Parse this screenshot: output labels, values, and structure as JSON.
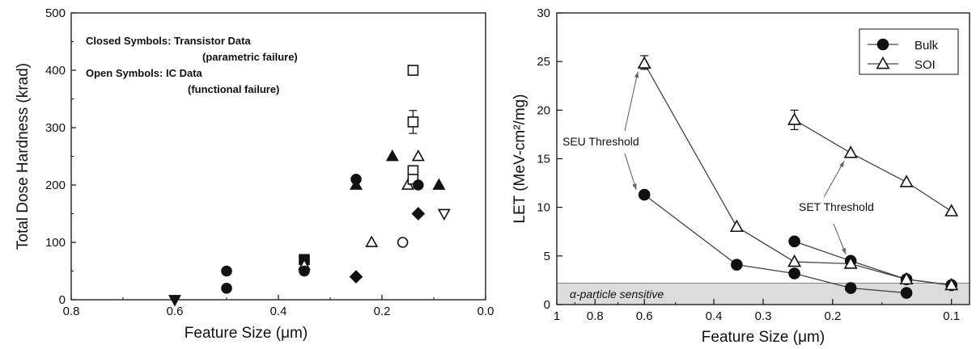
{
  "chart_data": [
    {
      "type": "scatter",
      "xlabel": "Feature Size (μm)",
      "ylabel": "Total Dose Hardness (krad)",
      "xlim": [
        0.8,
        0.0
      ],
      "ylim": [
        0,
        500
      ],
      "x_ticks": [
        "0.8",
        "0.6",
        "0.4",
        "0.2",
        "0.0"
      ],
      "y_ticks": [
        "0",
        "100",
        "200",
        "300",
        "400",
        "500"
      ],
      "x_tick_values": [
        0.8,
        0.6,
        0.4,
        0.2,
        0.0
      ],
      "y_tick_values": [
        0,
        100,
        200,
        300,
        400,
        500
      ],
      "grid": false,
      "annotations": [
        "Closed Symbols: Transistor Data",
        "(parametric failure)",
        "Open Symbols: IC Data",
        "(functional failure)"
      ],
      "points": [
        {
          "x": 0.6,
          "y": 0,
          "marker": "triangle-down",
          "filled": true
        },
        {
          "x": 0.5,
          "y": 50,
          "marker": "circle",
          "filled": true
        },
        {
          "x": 0.5,
          "y": 20,
          "marker": "circle",
          "filled": true
        },
        {
          "x": 0.35,
          "y": 70,
          "marker": "square",
          "filled": true
        },
        {
          "x": 0.35,
          "y": 60,
          "marker": "triangle-up",
          "filled": false
        },
        {
          "x": 0.35,
          "y": 50,
          "marker": "circle",
          "filled": true
        },
        {
          "x": 0.25,
          "y": 210,
          "marker": "circle",
          "filled": true
        },
        {
          "x": 0.25,
          "y": 200,
          "marker": "triangle-up",
          "filled": true
        },
        {
          "x": 0.25,
          "y": 40,
          "marker": "diamond",
          "filled": true
        },
        {
          "x": 0.22,
          "y": 100,
          "marker": "triangle-up",
          "filled": false
        },
        {
          "x": 0.18,
          "y": 250,
          "marker": "triangle-up",
          "filled": true
        },
        {
          "x": 0.16,
          "y": 100,
          "marker": "circle",
          "filled": false
        },
        {
          "x": 0.15,
          "y": 200,
          "marker": "triangle-up",
          "filled": false
        },
        {
          "x": 0.14,
          "y": 400,
          "marker": "square",
          "filled": false
        },
        {
          "x": 0.14,
          "y": 310,
          "marker": "square",
          "filled": false,
          "error": [
            290,
            330
          ]
        },
        {
          "x": 0.14,
          "y": 225,
          "marker": "square",
          "filled": false
        },
        {
          "x": 0.14,
          "y": 210,
          "marker": "square",
          "filled": false
        },
        {
          "x": 0.13,
          "y": 250,
          "marker": "triangle-up",
          "filled": false
        },
        {
          "x": 0.13,
          "y": 200,
          "marker": "circle",
          "filled": true
        },
        {
          "x": 0.13,
          "y": 150,
          "marker": "diamond",
          "filled": true
        },
        {
          "x": 0.09,
          "y": 200,
          "marker": "triangle-up",
          "filled": true
        },
        {
          "x": 0.08,
          "y": 150,
          "marker": "triangle-down",
          "filled": false
        }
      ]
    },
    {
      "type": "line",
      "xlabel": "Feature Size (μm)",
      "ylabel": "LET (MeV-cm²/mg)",
      "x_scale": "log",
      "xlim": [
        1,
        0.09
      ],
      "ylim": [
        0,
        30
      ],
      "x_ticks": [
        "1",
        "0.8",
        "0.6",
        "0.4",
        "0.3",
        "0.2",
        "0.1"
      ],
      "x_tick_values": [
        1,
        0.8,
        0.6,
        0.4,
        0.3,
        0.2,
        0.1
      ],
      "y_ticks": [
        "0",
        "5",
        "10",
        "15",
        "20",
        "25",
        "30"
      ],
      "y_tick_values": [
        0,
        5,
        10,
        15,
        20,
        25,
        30
      ],
      "grid": false,
      "legend": "top-right",
      "series": [
        {
          "name": "Bulk",
          "marker": "circle",
          "filled": true,
          "x": [
            0.6,
            0.35,
            0.25,
            0.18,
            0.13
          ],
          "y": [
            11.3,
            4.1,
            3.2,
            1.7,
            1.2
          ]
        },
        {
          "name": "Bulk",
          "marker": "circle",
          "filled": true,
          "x": [
            0.25,
            0.18,
            0.13,
            0.1
          ],
          "y": [
            6.5,
            4.5,
            2.6,
            2.0
          ]
        },
        {
          "name": "SOI",
          "marker": "triangle-up",
          "filled": false,
          "x": [
            0.6,
            0.35,
            0.25,
            0.18,
            0.13,
            0.1
          ],
          "y": [
            24.8,
            8.0,
            4.4,
            4.2,
            2.6,
            2.0
          ]
        },
        {
          "name": "SOI",
          "marker": "triangle-up",
          "filled": false,
          "x": [
            0.25,
            0.18,
            0.13,
            0.1
          ],
          "y": [
            19.0,
            15.6,
            12.6,
            9.6
          ]
        }
      ],
      "error_bars": [
        {
          "x": 0.6,
          "y": 24.8,
          "low": 24.2,
          "high": 25.6
        },
        {
          "x": 0.25,
          "y": 19.0,
          "low": 18.0,
          "high": 20.0
        }
      ],
      "shaded_band": {
        "y": [
          0,
          2.2
        ],
        "label": "α-particle sensitive"
      },
      "annotations": [
        "SEU Threshold",
        "SET Threshold"
      ]
    }
  ]
}
